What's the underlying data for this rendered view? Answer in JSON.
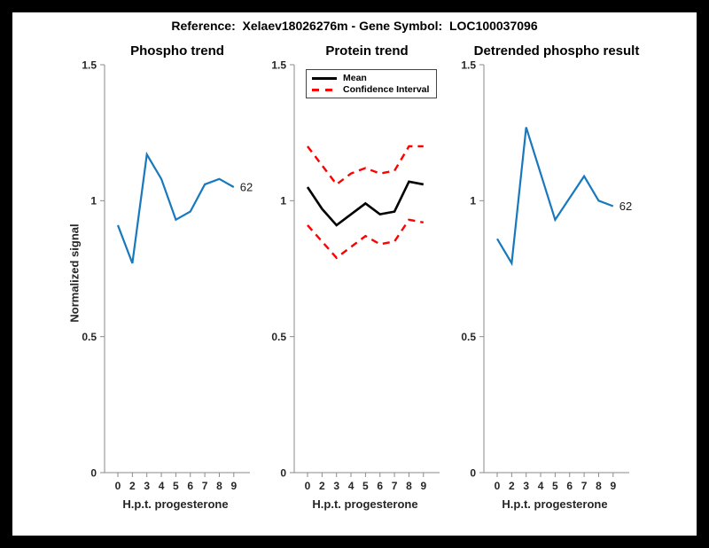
{
  "figure": {
    "title": "Reference:  Xelaev18026276m - Gene Symbol:  LOC100037096"
  },
  "colors": {
    "line_blue": "#1878BE",
    "line_red": "#FF0000",
    "line_black": "#000000",
    "axis": "#8A8A8A",
    "tick_label": "#262626",
    "frame": "#000000",
    "background": "#FFFFFF"
  },
  "chart_data": [
    {
      "type": "line",
      "title": "Phospho trend",
      "xlabel": "H.p.t. progesterone",
      "ylabel": "Normalized signal",
      "x_tick_labels": [
        "0",
        "2",
        "3",
        "4",
        "5",
        "6",
        "7",
        "8",
        "9"
      ],
      "y_ticks": [
        0,
        0.5,
        1,
        1.5
      ],
      "y_tick_labels": [
        "0",
        "0.5",
        "1",
        "1.5"
      ],
      "ylim": [
        0,
        1.5
      ],
      "grid": false,
      "series": [
        {
          "name": "phospho-signal",
          "color": "#1878BE",
          "line_style": "solid",
          "line_width": 2.2,
          "values": [
            0.91,
            0.77,
            1.17,
            1.08,
            0.93,
            0.96,
            1.06,
            1.08,
            1.05
          ],
          "end_label": "62"
        }
      ]
    },
    {
      "type": "line",
      "title": "Protein trend",
      "xlabel": "H.p.t. progesterone",
      "ylabel": "",
      "x_tick_labels": [
        "0",
        "2",
        "3",
        "4",
        "5",
        "6",
        "7",
        "8",
        "9"
      ],
      "y_ticks": [
        0,
        0.5,
        1,
        1.5
      ],
      "y_tick_labels": [
        "0",
        "0.5",
        "1",
        "1.5"
      ],
      "ylim": [
        0,
        1.5
      ],
      "grid": false,
      "legend": {
        "position": "top-left",
        "entries": [
          {
            "label": "Mean",
            "color": "#000000",
            "line_style": "solid"
          },
          {
            "label": "Confidence Interval",
            "color": "#FF0000",
            "line_style": "dashed"
          }
        ]
      },
      "series": [
        {
          "name": "mean",
          "color": "#000000",
          "line_style": "solid",
          "line_width": 2.6,
          "values": [
            1.05,
            0.97,
            0.91,
            0.95,
            0.99,
            0.95,
            0.96,
            1.07,
            1.06
          ]
        },
        {
          "name": "confidence-upper",
          "color": "#FF0000",
          "line_style": "dashed",
          "line_width": 2.4,
          "values": [
            1.2,
            1.13,
            1.06,
            1.1,
            1.12,
            1.1,
            1.11,
            1.2,
            1.2
          ]
        },
        {
          "name": "confidence-lower",
          "color": "#FF0000",
          "line_style": "dashed",
          "line_width": 2.4,
          "values": [
            0.91,
            0.85,
            0.79,
            0.83,
            0.87,
            0.84,
            0.85,
            0.93,
            0.92
          ]
        }
      ]
    },
    {
      "type": "line",
      "title": "Detrended phospho result",
      "xlabel": "H.p.t. progesterone",
      "ylabel": "",
      "x_tick_labels": [
        "0",
        "2",
        "3",
        "4",
        "5",
        "6",
        "7",
        "8",
        "9"
      ],
      "y_ticks": [
        0,
        0.5,
        1,
        1.5
      ],
      "y_tick_labels": [
        "0",
        "0.5",
        "1",
        "1.5"
      ],
      "ylim": [
        0,
        1.5
      ],
      "grid": false,
      "series": [
        {
          "name": "detrended-phospho",
          "color": "#1878BE",
          "line_style": "solid",
          "line_width": 2.2,
          "values": [
            0.86,
            0.77,
            1.27,
            1.1,
            0.93,
            1.01,
            1.09,
            1.0,
            0.98
          ],
          "end_label": "62"
        }
      ]
    }
  ]
}
